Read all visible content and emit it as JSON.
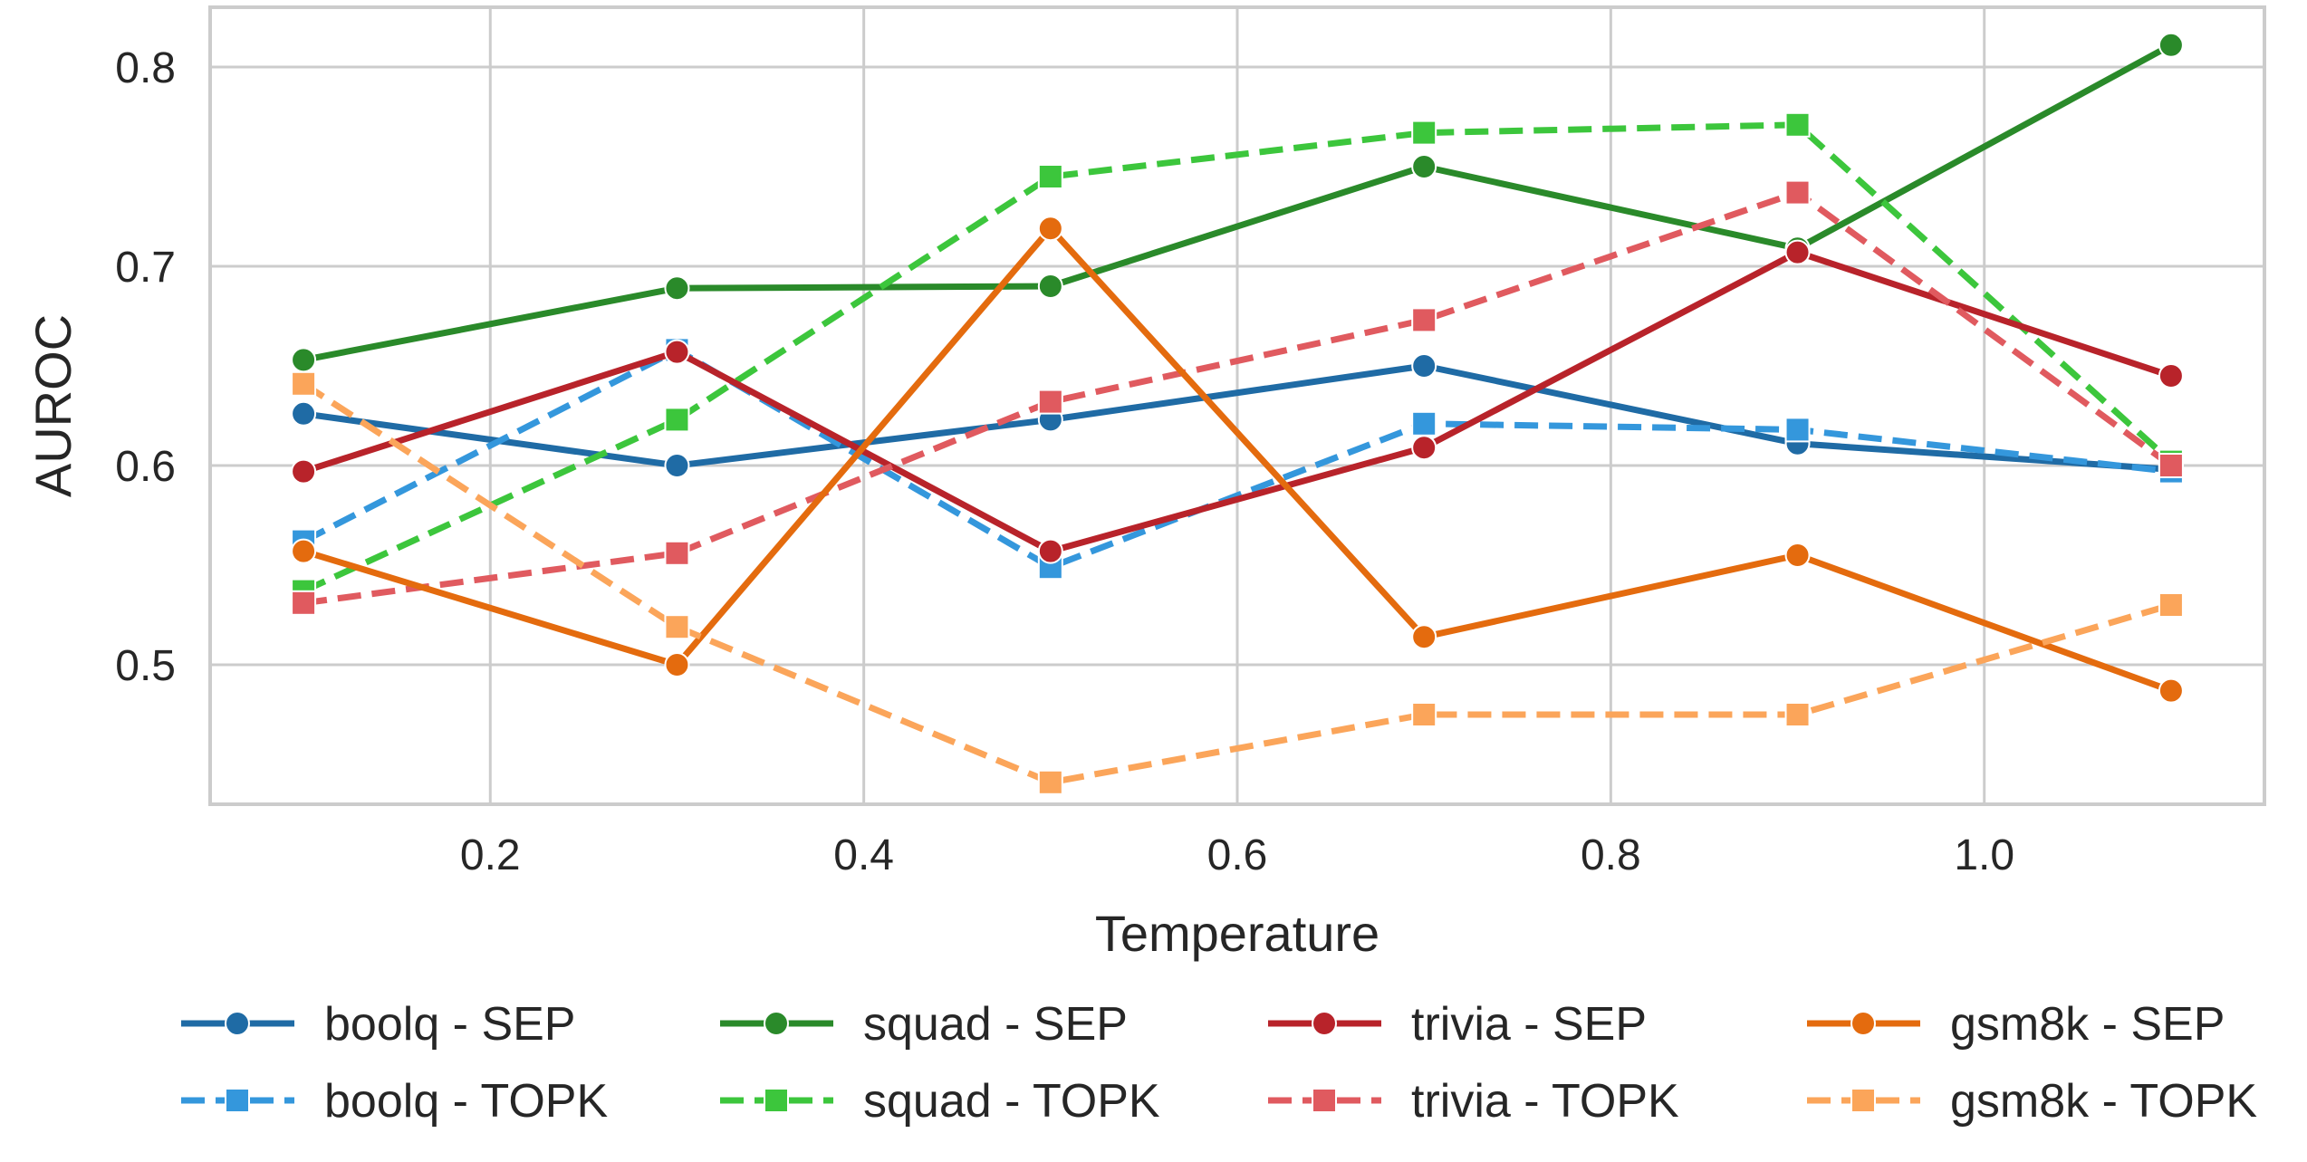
{
  "chart_data": {
    "type": "line",
    "title": "",
    "xlabel": "Temperature",
    "ylabel": "AUROC",
    "x": [
      0.1,
      0.3,
      0.5,
      0.7,
      0.9,
      1.1
    ],
    "xlim": [
      0.05,
      1.15
    ],
    "ylim": [
      0.43,
      0.83
    ],
    "xticks": [
      0.2,
      0.4,
      0.6,
      0.8,
      1.0
    ],
    "xtick_labels": [
      "0.2",
      "0.4",
      "0.6",
      "0.8",
      "1.0"
    ],
    "yticks": [
      0.5,
      0.6,
      0.7,
      0.8
    ],
    "ytick_labels": [
      "0.5",
      "0.6",
      "0.7",
      "0.8"
    ],
    "grid": true,
    "legend_position": "bottom",
    "series": [
      {
        "name": "boolq - SEP",
        "color": "#1f6ba5",
        "style": "solid",
        "marker": "circle",
        "values": [
          0.626,
          0.6,
          0.623,
          0.65,
          0.611,
          0.598
        ]
      },
      {
        "name": "boolq - TOPK",
        "color": "#3497dc",
        "style": "dashed",
        "marker": "square",
        "values": [
          0.562,
          0.658,
          0.549,
          0.621,
          0.618,
          0.597
        ]
      },
      {
        "name": "squad - SEP",
        "color": "#2a8a2a",
        "style": "solid",
        "marker": "circle",
        "values": [
          0.653,
          0.689,
          0.69,
          0.75,
          0.709,
          0.811
        ]
      },
      {
        "name": "squad - TOPK",
        "color": "#3cc63c",
        "style": "dashed",
        "marker": "square",
        "values": [
          0.537,
          0.623,
          0.745,
          0.767,
          0.771,
          0.602
        ]
      },
      {
        "name": "trivia - SEP",
        "color": "#b8232a",
        "style": "solid",
        "marker": "circle",
        "values": [
          0.597,
          0.657,
          0.557,
          0.609,
          0.707,
          0.645
        ]
      },
      {
        "name": "trivia - TOPK",
        "color": "#e05a5f",
        "style": "dashed",
        "marker": "square",
        "values": [
          0.531,
          0.556,
          0.632,
          0.673,
          0.737,
          0.6
        ]
      },
      {
        "name": "gsm8k - SEP",
        "color": "#e46b0e",
        "style": "solid",
        "marker": "circle",
        "values": [
          0.557,
          0.5,
          0.719,
          0.514,
          0.555,
          0.487
        ]
      },
      {
        "name": "gsm8k - TOPK",
        "color": "#fba55a",
        "style": "dashed",
        "marker": "square",
        "values": [
          0.641,
          0.519,
          0.441,
          0.475,
          0.475,
          0.53
        ]
      }
    ]
  }
}
